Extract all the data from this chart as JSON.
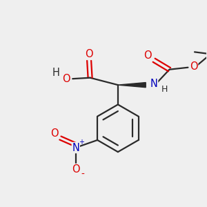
{
  "background_color": "#efefef",
  "bond_color": "#2a2a2a",
  "oxygen_color": "#dd0000",
  "nitrogen_color": "#0000bb",
  "figsize": [
    3.0,
    3.0
  ],
  "dpi": 100,
  "xlim": [
    0,
    10
  ],
  "ylim": [
    0,
    10
  ]
}
